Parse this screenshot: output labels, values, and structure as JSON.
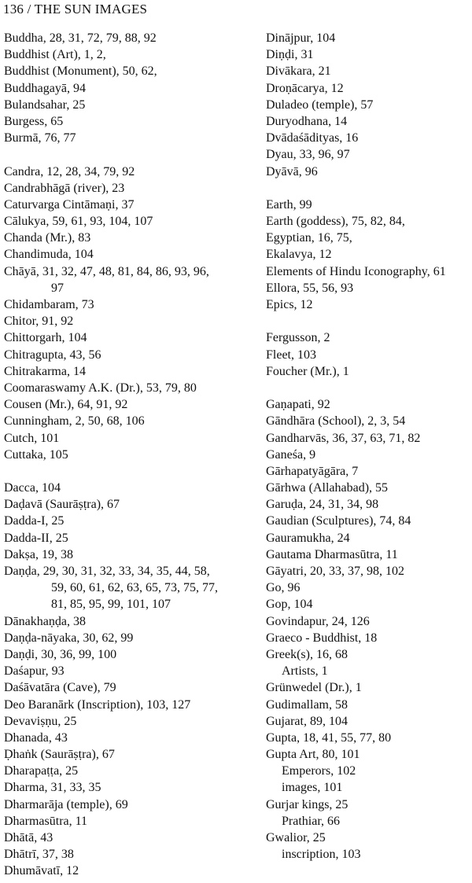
{
  "header": {
    "page_number": "136",
    "separator": "/",
    "running_title": "THE SUN IMAGES"
  },
  "index": {
    "left": [
      {
        "type": "entry",
        "text": "Buddha, 28, 31, 72, 79, 88, 92"
      },
      {
        "type": "entry",
        "text": "Buddhist (Art), 1, 2,"
      },
      {
        "type": "entry",
        "text": "Buddhist (Monument), 50, 62,"
      },
      {
        "type": "entry",
        "text": "Buddhagayā, 94"
      },
      {
        "type": "entry",
        "text": "Bulandsahar, 25"
      },
      {
        "type": "entry",
        "text": "Burgess, 65"
      },
      {
        "type": "entry",
        "text": "Burmā, 76, 77"
      },
      {
        "type": "blank",
        "text": ""
      },
      {
        "type": "entry",
        "text": "Candra, 12,  28, 34, 79, 92"
      },
      {
        "type": "entry",
        "text": "Candrabhāgā (river), 23"
      },
      {
        "type": "entry",
        "text": "Caturvarga Cintāmaṇi, 37"
      },
      {
        "type": "entry",
        "text": "Cālukya, 59, 61, 93, 104, 107"
      },
      {
        "type": "entry",
        "text": "Chanda (Mr.), 83"
      },
      {
        "type": "entry",
        "text": "Chandimuda, 104"
      },
      {
        "type": "entry",
        "text": "Chāyā, 31, 32, 47, 48, 81, 84, 86, 93, 96,"
      },
      {
        "type": "cont",
        "text": "97"
      },
      {
        "type": "entry",
        "text": "Chidambaram, 73"
      },
      {
        "type": "entry",
        "text": "Chitor, 91, 92"
      },
      {
        "type": "entry",
        "text": "Chittorgarh, 104"
      },
      {
        "type": "entry",
        "text": "Chitragupta, 43, 56"
      },
      {
        "type": "entry",
        "text": "Chitrakarma, 14"
      },
      {
        "type": "entry",
        "text": "Coomaraswamy A.K. (Dr.), 53, 79, 80"
      },
      {
        "type": "entry",
        "text": "Cousen (Mr.), 64, 91, 92"
      },
      {
        "type": "entry",
        "text": "Cunningham, 2, 50, 68, 106"
      },
      {
        "type": "entry",
        "text": "Cutch, 101"
      },
      {
        "type": "entry",
        "text": "Cuttaka, 105"
      },
      {
        "type": "blank",
        "text": ""
      },
      {
        "type": "entry",
        "text": "Dacca, 104"
      },
      {
        "type": "entry",
        "text": "Daḍavā (Saurāṣṭra), 67"
      },
      {
        "type": "entry",
        "text": "Dadda-I, 25"
      },
      {
        "type": "entry",
        "text": "Dadda-II, 25"
      },
      {
        "type": "entry",
        "text": "Dakṣa, 19, 38"
      },
      {
        "type": "entry",
        "text": "Daṇḍa, 29, 30, 31, 32, 33, 34, 35, 44, 58,"
      },
      {
        "type": "cont",
        "text": "59, 60, 61, 62, 63, 65, 73, 75, 77,"
      },
      {
        "type": "cont",
        "text": "81, 85, 95, 99, 101, 107"
      },
      {
        "type": "entry",
        "text": "Dānakhaṇḍa, 38"
      },
      {
        "type": "entry",
        "text": "Daṇḍa-nāyaka, 30, 62, 99"
      },
      {
        "type": "entry",
        "text": "Daṇḍi, 30, 36, 99, 100"
      },
      {
        "type": "entry",
        "text": "Daśapur, 93"
      },
      {
        "type": "entry",
        "text": "Daśāvatāra (Cave), 79"
      },
      {
        "type": "entry",
        "text": "Deo Baranārk (Inscription), 103, 127"
      },
      {
        "type": "entry",
        "text": "Devaviṣṇu, 25"
      },
      {
        "type": "entry",
        "text": "Dhanada, 43"
      },
      {
        "type": "entry",
        "text": "Ḍhaṅk (Saurāṣṭra), 67"
      },
      {
        "type": "entry",
        "text": "Dharapaṭṭa, 25"
      },
      {
        "type": "entry",
        "text": "Dharma, 31, 33, 35"
      },
      {
        "type": "entry",
        "text": "Dharmarāja (temple), 69"
      },
      {
        "type": "entry",
        "text": "Dharmasūtra, 11"
      },
      {
        "type": "entry",
        "text": "Dhātā, 43"
      },
      {
        "type": "entry",
        "text": "Dhātrī, 37, 38"
      },
      {
        "type": "entry",
        "text": "Dhumāvatī, 12"
      }
    ],
    "right": [
      {
        "type": "entry",
        "text": "Dinājpur, 104"
      },
      {
        "type": "entry",
        "text": "Diṇḍi, 31"
      },
      {
        "type": "entry",
        "text": "Divākara, 21"
      },
      {
        "type": "entry",
        "text": "Droṇācarya, 12"
      },
      {
        "type": "entry",
        "text": "Duladeo (temple), 57"
      },
      {
        "type": "entry",
        "text": "Duryodhana, 14"
      },
      {
        "type": "entry",
        "text": "Dvādaśādityas, 16"
      },
      {
        "type": "entry",
        "text": "Dyau, 33, 96, 97"
      },
      {
        "type": "entry",
        "text": "Dyāvā, 96"
      },
      {
        "type": "blank",
        "text": ""
      },
      {
        "type": "entry",
        "text": "Earth, 99"
      },
      {
        "type": "entry",
        "text": "Earth (goddess), 75, 82, 84,"
      },
      {
        "type": "entry",
        "text": "Egyptian, 16, 75,"
      },
      {
        "type": "entry",
        "text": "Ekalavya, 12"
      },
      {
        "type": "entry",
        "text": "Elements of Hindu Iconography, 61"
      },
      {
        "type": "entry",
        "text": "Ellora, 55, 56, 93"
      },
      {
        "type": "entry",
        "text": "Epics, 12"
      },
      {
        "type": "blank",
        "text": ""
      },
      {
        "type": "entry",
        "text": "Fergusson, 2"
      },
      {
        "type": "entry",
        "text": "Fleet, 103"
      },
      {
        "type": "entry",
        "text": "Foucher (Mr.), 1"
      },
      {
        "type": "blank",
        "text": ""
      },
      {
        "type": "entry",
        "text": "Gaṇapati, 92"
      },
      {
        "type": "entry",
        "text": "Gāndhāra (School), 2, 3, 54"
      },
      {
        "type": "entry",
        "text": "Gandharvās, 36, 37, 63, 71, 82"
      },
      {
        "type": "entry",
        "text": "Ganeśa, 9"
      },
      {
        "type": "entry",
        "text": "Gārhapatyāgāra, 7"
      },
      {
        "type": "entry",
        "text": "Gārhwa (Allahabad), 55"
      },
      {
        "type": "entry",
        "text": "Garuḍa, 24, 31, 34, 98"
      },
      {
        "type": "entry",
        "text": "Gaudian (Sculptures), 74, 84"
      },
      {
        "type": "entry",
        "text": "Gauramukha, 24"
      },
      {
        "type": "entry",
        "text": "Gautama Dharmasūtra, 11"
      },
      {
        "type": "entry",
        "text": "Gāyatri, 20, 33, 37, 98, 102"
      },
      {
        "type": "entry",
        "text": "Go, 96"
      },
      {
        "type": "entry",
        "text": "Gop, 104"
      },
      {
        "type": "entry",
        "text": "Govindapur, 24, 126"
      },
      {
        "type": "entry",
        "text": "Graeco - Buddhist, 18"
      },
      {
        "type": "entry",
        "text": "Greek(s), 16, 68"
      },
      {
        "type": "sub",
        "text": "Artists, 1"
      },
      {
        "type": "entry",
        "text": "Grünwedel (Dr.), 1"
      },
      {
        "type": "entry",
        "text": "Gudimallam, 58"
      },
      {
        "type": "entry",
        "text": "Gujarat, 89, 104"
      },
      {
        "type": "entry",
        "text": "Gupta, 18, 41, 55, 77, 80"
      },
      {
        "type": "entry",
        "text": "Gupta Art, 80, 101"
      },
      {
        "type": "sub",
        "text": "Emperors, 102"
      },
      {
        "type": "sub",
        "text": "images, 101"
      },
      {
        "type": "entry",
        "text": "Gurjar kings, 25"
      },
      {
        "type": "sub",
        "text": "Prathiar, 66"
      },
      {
        "type": "entry",
        "text": "Gwalior, 25"
      },
      {
        "type": "sub",
        "text": "inscription, 103"
      }
    ]
  }
}
